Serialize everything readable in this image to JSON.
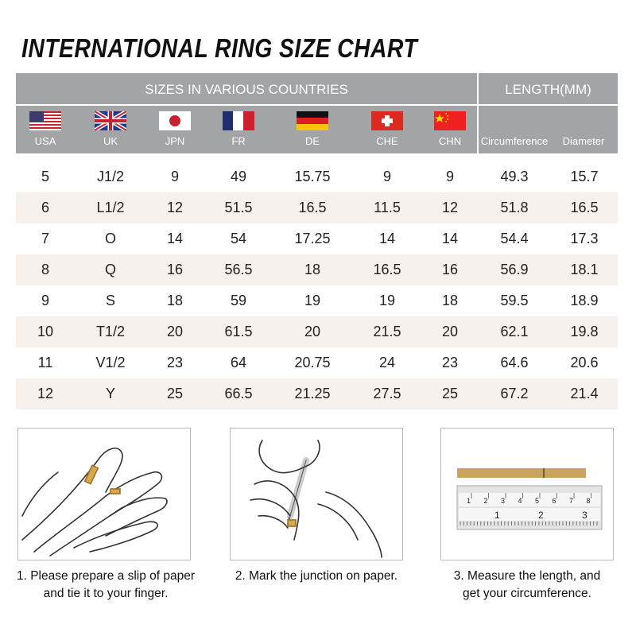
{
  "title": "INTERNATIONAL RING SIZE CHART",
  "header": {
    "sizes_label": "SIZES IN VARIOUS COUNTRIES",
    "length_label": "LENGTH(MM)",
    "countries": [
      {
        "code": "USA",
        "flag": "us-flag"
      },
      {
        "code": "UK",
        "flag": "uk-flag"
      },
      {
        "code": "JPN",
        "flag": "japan-flag"
      },
      {
        "code": "FR",
        "flag": "france-flag"
      },
      {
        "code": "DE",
        "flag": "germany-flag"
      },
      {
        "code": "CHE",
        "flag": "switzerland-flag"
      },
      {
        "code": "CHN",
        "flag": "china-flag"
      }
    ],
    "length_columns": [
      "Circumference",
      "Diameter"
    ]
  },
  "rows": [
    [
      "5",
      "J1/2",
      "9",
      "49",
      "15.75",
      "9",
      "9",
      "49.3",
      "15.7"
    ],
    [
      "6",
      "L1/2",
      "12",
      "51.5",
      "16.5",
      "11.5",
      "12",
      "51.8",
      "16.5"
    ],
    [
      "7",
      "O",
      "14",
      "54",
      "17.25",
      "14",
      "14",
      "54.4",
      "17.3"
    ],
    [
      "8",
      "Q",
      "16",
      "56.5",
      "18",
      "16.5",
      "16",
      "56.9",
      "18.1"
    ],
    [
      "9",
      "S",
      "18",
      "59",
      "19",
      "19",
      "18",
      "59.5",
      "18.9"
    ],
    [
      "10",
      "T1/2",
      "20",
      "61.5",
      "20",
      "21.5",
      "20",
      "62.1",
      "19.8"
    ],
    [
      "11",
      "V1/2",
      "23",
      "64",
      "20.75",
      "24",
      "23",
      "64.6",
      "20.6"
    ],
    [
      "12",
      "Y",
      "25",
      "66.5",
      "21.25",
      "27.5",
      "25",
      "67.2",
      "21.4"
    ]
  ],
  "colors": {
    "header_bg": "#a3a4a6",
    "alt_row": "#f7f1ed",
    "paper_strip": "#c9a35a"
  },
  "steps": [
    {
      "line1": "1. Please prepare a slip of paper",
      "line2": "and tie it to your finger."
    },
    {
      "line1": "2. Mark the junction on paper.",
      "line2": ""
    },
    {
      "line1": "3. Measure the length, and",
      "line2": "get your circumference."
    }
  ],
  "ruler": {
    "cm_ticks": [
      "1",
      "2",
      "3",
      "4",
      "5",
      "6",
      "7",
      "8"
    ],
    "inch_ticks": [
      "1",
      "2",
      "3"
    ]
  }
}
